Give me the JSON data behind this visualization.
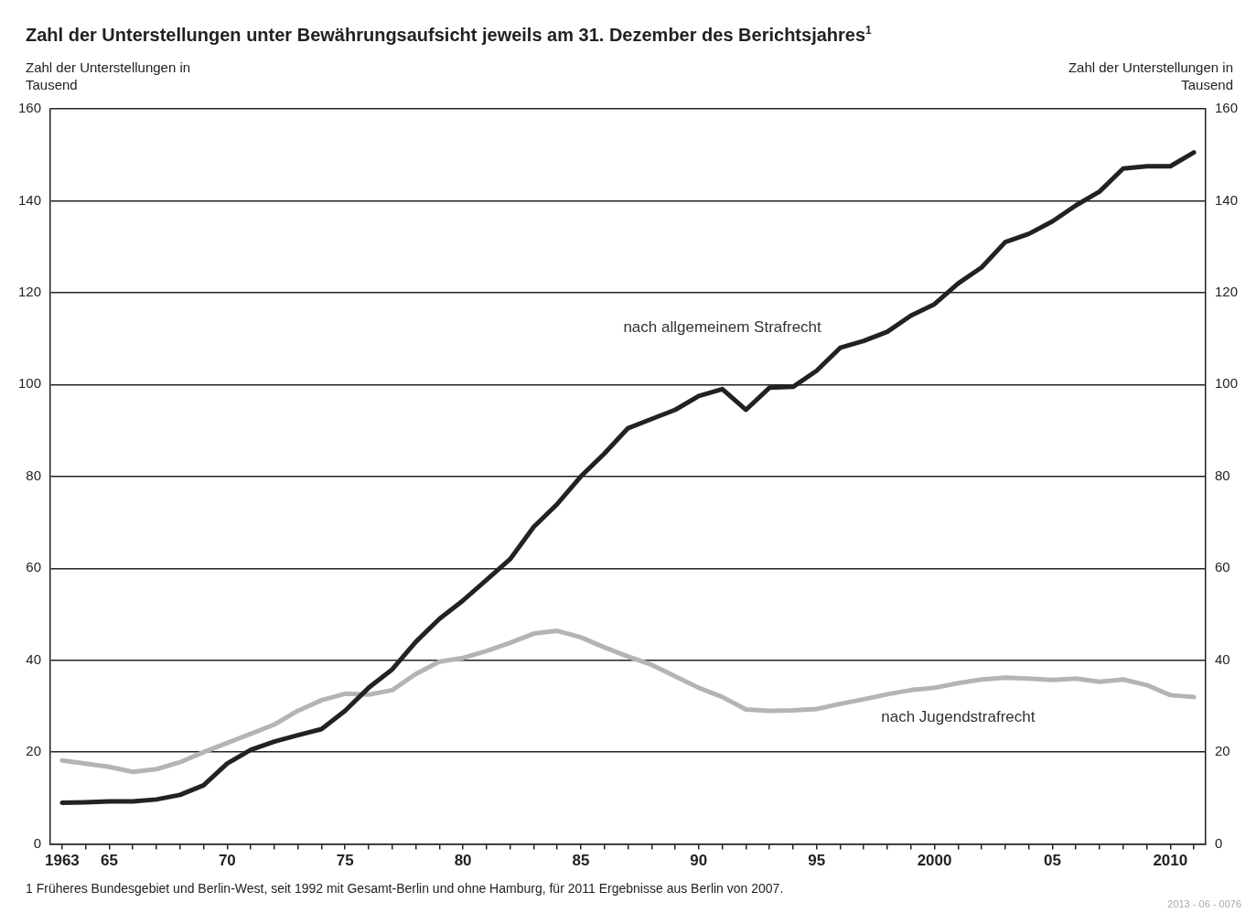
{
  "chart_data": {
    "type": "line",
    "title": "Zahl der Unterstellungen unter Bewährungsaufsicht jeweils am 31. Dezember des Berichtsjahres$^{1}$",
    "ylabel": "Zahl der Unterstellungen in Tausend",
    "y2label": "Zahl der Unterstellungen in Tausend",
    "categories": [
      "1963",
      null,
      "65",
      null,
      null,
      null,
      null,
      "70",
      null,
      null,
      null,
      null,
      "75",
      null,
      null,
      null,
      null,
      "80",
      null,
      null,
      null,
      null,
      "85",
      null,
      null,
      null,
      null,
      "90",
      null,
      null,
      null,
      null,
      "95",
      null,
      null,
      null,
      null,
      "2000",
      null,
      null,
      null,
      null,
      "05",
      null,
      null,
      null,
      null,
      "2010",
      null
    ],
    "series": [
      {
        "name": "nach allgemeinem Strafrecht",
        "color": "#222222",
        "values": [
          9.0,
          9.1,
          9.3,
          9.3,
          9.7,
          10.7,
          12.8,
          17.5,
          20.5,
          22.3,
          23.7,
          25,
          29,
          34,
          38,
          44,
          49,
          53,
          57.5,
          62,
          69,
          74,
          80,
          85,
          90.5,
          92.5,
          94.5,
          97.5,
          99,
          94.5,
          99.3,
          99.5,
          103,
          108,
          109.5,
          111.5,
          115,
          117.5,
          122,
          125.5,
          131,
          132.8,
          135.5,
          139,
          142,
          147,
          147.5,
          147.5,
          150.5
        ]
      },
      {
        "name": "nach Jugendstrafrecht",
        "color": "#b4b4b4",
        "values": [
          18.2,
          17.5,
          16.8,
          15.7,
          16.3,
          17.8,
          20,
          22,
          24,
          26,
          29,
          31.3,
          32.7,
          32.5,
          33.5,
          37,
          39.7,
          40.5,
          42,
          43.8,
          45.8,
          46.4,
          45,
          42.8,
          40.8,
          39,
          36.5,
          34,
          32,
          29.3,
          29,
          29.1,
          29.4,
          30.5,
          31.5,
          32.6,
          33.5,
          34,
          35,
          35.8,
          36.2,
          36,
          35.7,
          36,
          35.3,
          35.8,
          34.6,
          32.4,
          32
        ]
      }
    ],
    "ylim": [
      0,
      160
    ],
    "yticks": [
      0,
      20,
      40,
      60,
      80,
      100,
      120,
      140,
      160
    ],
    "y2lim": [
      0,
      160
    ],
    "y2ticks": [
      0,
      20,
      40,
      60,
      80,
      100,
      120,
      140,
      160
    ],
    "grid": "y",
    "legend": false,
    "marker": "none",
    "line_style": "solid",
    "annotations": [
      "1 Früheres Bundesgebiet und Berlin-West, seit 1992 mit Gesamt-Berlin und ohne Hamburg, für 2011 Ergebnisse aus Berlin von 2007.",
      "2013 - 06 - 0076"
    ]
  }
}
